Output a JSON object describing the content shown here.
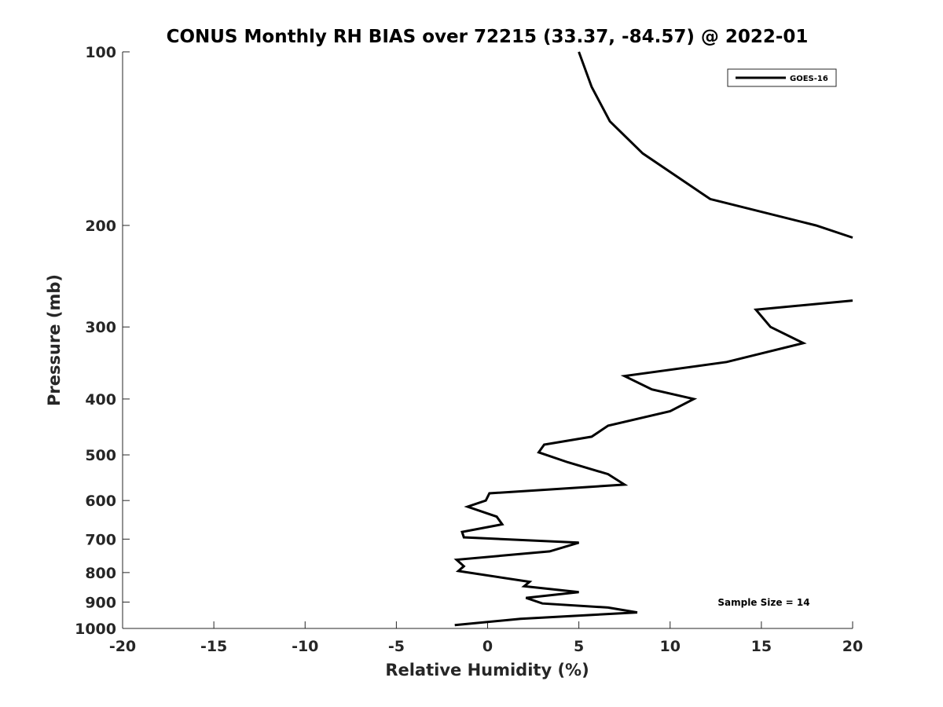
{
  "chart_data": {
    "type": "line",
    "title": "CONUS Monthly RH BIAS over 72215 (33.37, -84.57) @ 2022-01",
    "xlabel": "Relative Humidity (%)",
    "ylabel": "Pressure (mb)",
    "xlim": [
      -20,
      20
    ],
    "ylim": [
      100,
      1000
    ],
    "y_scale": "log",
    "y_reversed": true,
    "grid": false,
    "legend_position": "top-right",
    "x_ticks": [
      "-20",
      "-15",
      "-10",
      "-5",
      "0",
      "5",
      "10",
      "15",
      "20"
    ],
    "y_ticks": [
      "100",
      "200",
      "300",
      "400",
      "500",
      "600",
      "700",
      "800",
      "900",
      "1000"
    ],
    "series": [
      {
        "name": "GOES-16",
        "color": "#000000",
        "points": [
          [
            5.0,
            100
          ],
          [
            5.7,
            115
          ],
          [
            6.7,
            132
          ],
          [
            8.5,
            150
          ],
          [
            12.2,
            180
          ],
          [
            18.0,
            200
          ],
          [
            20.0,
            210
          ],
          [
            null,
            null
          ],
          [
            20.0,
            270
          ],
          [
            14.7,
            280
          ],
          [
            15.5,
            300
          ],
          [
            17.3,
            320
          ],
          [
            13.1,
            345
          ],
          [
            7.5,
            365
          ],
          [
            9.0,
            385
          ],
          [
            11.3,
            400
          ],
          [
            10.0,
            420
          ],
          [
            6.6,
            445
          ],
          [
            5.7,
            465
          ],
          [
            3.1,
            480
          ],
          [
            2.8,
            495
          ],
          [
            4.4,
            515
          ],
          [
            6.6,
            540
          ],
          [
            7.5,
            563
          ],
          [
            0.1,
            583
          ],
          [
            -0.1,
            600
          ],
          [
            -1.1,
            615
          ],
          [
            0.5,
            640
          ],
          [
            0.8,
            660
          ],
          [
            -1.4,
            680
          ],
          [
            -1.3,
            695
          ],
          [
            5.0,
            710
          ],
          [
            3.4,
            735
          ],
          [
            -1.7,
            760
          ],
          [
            -1.3,
            780
          ],
          [
            -1.6,
            795
          ],
          [
            2.3,
            830
          ],
          [
            2.0,
            845
          ],
          [
            5.0,
            865
          ],
          [
            2.1,
            885
          ],
          [
            3.0,
            905
          ],
          [
            6.6,
            920
          ],
          [
            8.2,
            938
          ],
          [
            1.8,
            962
          ],
          [
            -1.8,
            987
          ]
        ]
      }
    ],
    "annotations": [
      {
        "text": "Sample Size = 14",
        "x": 15.3,
        "y": 900
      }
    ]
  }
}
